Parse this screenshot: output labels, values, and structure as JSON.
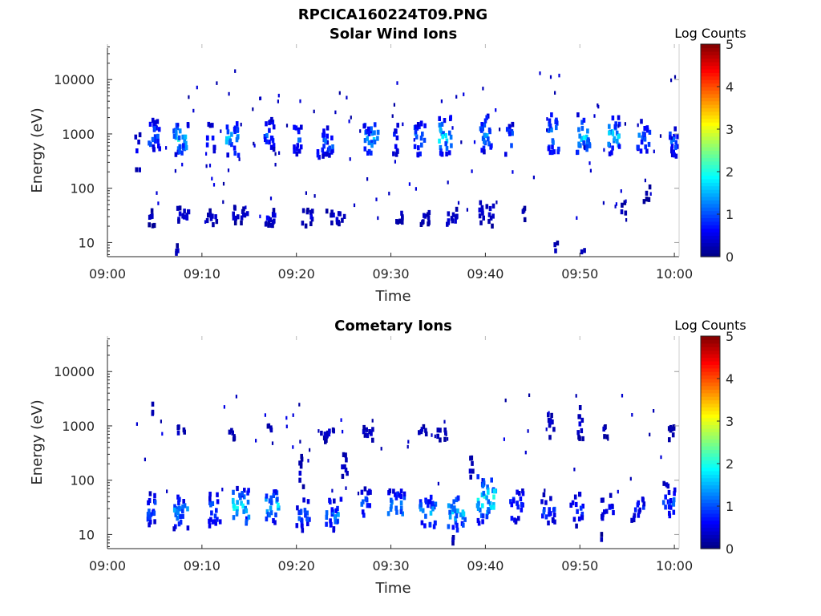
{
  "figure": {
    "filename": "RPCICA160224T09.PNG"
  },
  "chart_data": [
    {
      "type": "heatmap",
      "title": "Solar Wind Ions",
      "xlabel": "Time",
      "ylabel": "Energy (eV)",
      "x_ticks": [
        "09:00",
        "09:10",
        "09:20",
        "09:30",
        "09:40",
        "09:50",
        "10:00"
      ],
      "xlim_minutes": [
        0,
        60.5
      ],
      "y_scale": "log",
      "y_ticks": [
        10,
        100,
        1000,
        10000
      ],
      "y_tick_labels": [
        "10",
        "100",
        "1000",
        "10000"
      ],
      "ylim": [
        5.5,
        45000
      ],
      "colorbar": {
        "label": "Log Counts",
        "ticks": [
          "0",
          "1",
          "2",
          "3",
          "4",
          "5"
        ],
        "range": [
          0,
          5
        ],
        "colormap": "jet"
      },
      "bursts": [
        {
          "t": 3.0,
          "logE": 2.7,
          "w": 0.6,
          "h": 0.35,
          "level": 0.7,
          "n": 6
        },
        {
          "t": 4.8,
          "logE": 3.0,
          "w": 1.2,
          "h": 0.3,
          "level": 1.3,
          "n": 22
        },
        {
          "t": 7.6,
          "logE": 2.95,
          "w": 1.6,
          "h": 0.3,
          "level": 1.8,
          "n": 30
        },
        {
          "t": 10.8,
          "logE": 2.95,
          "w": 0.8,
          "h": 0.3,
          "level": 1.0,
          "n": 10
        },
        {
          "t": 13.1,
          "logE": 2.95,
          "w": 1.3,
          "h": 0.3,
          "level": 1.7,
          "n": 24
        },
        {
          "t": 17.0,
          "logE": 3.05,
          "w": 1.0,
          "h": 0.3,
          "level": 1.2,
          "n": 18
        },
        {
          "t": 20.0,
          "logE": 2.95,
          "w": 0.8,
          "h": 0.3,
          "level": 1.1,
          "n": 14
        },
        {
          "t": 22.8,
          "logE": 2.9,
          "w": 1.8,
          "h": 0.3,
          "level": 1.3,
          "n": 26
        },
        {
          "t": 27.7,
          "logE": 2.95,
          "w": 1.6,
          "h": 0.3,
          "level": 1.6,
          "n": 26
        },
        {
          "t": 30.3,
          "logE": 2.95,
          "w": 0.6,
          "h": 0.3,
          "level": 1.0,
          "n": 10
        },
        {
          "t": 32.9,
          "logE": 2.95,
          "w": 1.3,
          "h": 0.3,
          "level": 1.6,
          "n": 20
        },
        {
          "t": 35.6,
          "logE": 3.0,
          "w": 1.3,
          "h": 0.35,
          "level": 1.9,
          "n": 26
        },
        {
          "t": 39.9,
          "logE": 3.05,
          "w": 1.2,
          "h": 0.35,
          "level": 1.5,
          "n": 24
        },
        {
          "t": 42.4,
          "logE": 2.95,
          "w": 0.8,
          "h": 0.3,
          "level": 1.2,
          "n": 12
        },
        {
          "t": 47.1,
          "logE": 3.05,
          "w": 1.1,
          "h": 0.35,
          "level": 1.6,
          "n": 22
        },
        {
          "t": 50.3,
          "logE": 3.05,
          "w": 1.5,
          "h": 0.35,
          "level": 1.9,
          "n": 26
        },
        {
          "t": 53.5,
          "logE": 3.0,
          "w": 1.3,
          "h": 0.35,
          "level": 1.7,
          "n": 24
        },
        {
          "t": 56.6,
          "logE": 3.0,
          "w": 1.3,
          "h": 0.3,
          "level": 1.3,
          "n": 20
        },
        {
          "t": 59.8,
          "logE": 2.9,
          "w": 0.9,
          "h": 0.3,
          "level": 1.2,
          "n": 18
        },
        {
          "t": 4.5,
          "logE": 1.5,
          "w": 0.7,
          "h": 0.15,
          "level": 0.4,
          "n": 8
        },
        {
          "t": 7.7,
          "logE": 1.55,
          "w": 1.6,
          "h": 0.15,
          "level": 0.5,
          "n": 14
        },
        {
          "t": 11.0,
          "logE": 1.5,
          "w": 1.2,
          "h": 0.15,
          "level": 0.4,
          "n": 10
        },
        {
          "t": 14.0,
          "logE": 1.55,
          "w": 1.8,
          "h": 0.15,
          "level": 0.5,
          "n": 14
        },
        {
          "t": 17.0,
          "logE": 1.5,
          "w": 1.2,
          "h": 0.15,
          "level": 0.6,
          "n": 14
        },
        {
          "t": 21.0,
          "logE": 1.5,
          "w": 1.3,
          "h": 0.15,
          "level": 0.5,
          "n": 10
        },
        {
          "t": 24.0,
          "logE": 1.5,
          "w": 2.0,
          "h": 0.15,
          "level": 0.5,
          "n": 14
        },
        {
          "t": 30.8,
          "logE": 1.55,
          "w": 1.0,
          "h": 0.15,
          "level": 0.4,
          "n": 8
        },
        {
          "t": 33.5,
          "logE": 1.5,
          "w": 1.2,
          "h": 0.15,
          "level": 0.4,
          "n": 10
        },
        {
          "t": 36.5,
          "logE": 1.5,
          "w": 1.4,
          "h": 0.2,
          "level": 0.5,
          "n": 12
        },
        {
          "t": 40.0,
          "logE": 1.6,
          "w": 1.6,
          "h": 0.25,
          "level": 0.5,
          "n": 16
        },
        {
          "t": 44.0,
          "logE": 1.6,
          "w": 0.4,
          "h": 0.15,
          "level": 0.3,
          "n": 4
        },
        {
          "t": 47.3,
          "logE": 0.9,
          "w": 0.4,
          "h": 0.2,
          "level": 0.4,
          "n": 5
        },
        {
          "t": 50.2,
          "logE": 0.85,
          "w": 0.4,
          "h": 0.15,
          "level": 0.3,
          "n": 3
        },
        {
          "t": 57.0,
          "logE": 1.95,
          "w": 0.8,
          "h": 0.15,
          "level": 0.3,
          "n": 5
        },
        {
          "t": 54.5,
          "logE": 1.6,
          "w": 0.6,
          "h": 0.2,
          "level": 0.3,
          "n": 4
        },
        {
          "t": 7.3,
          "logE": 0.9,
          "w": 0.4,
          "h": 0.1,
          "level": 0.4,
          "n": 4
        },
        {
          "t": 12.8,
          "logE": 0.85,
          "w": 0.3,
          "h": 0.1,
          "level": 0.4,
          "n": 3
        }
      ],
      "scatter_density": 110,
      "scatter_logE_range": [
        1.4,
        4.2
      ],
      "seed": 7
    },
    {
      "type": "heatmap",
      "title": "Cometary Ions",
      "xlabel": "Time",
      "ylabel": "Energy (eV)",
      "x_ticks": [
        "09:00",
        "09:10",
        "09:20",
        "09:30",
        "09:40",
        "09:50",
        "10:00"
      ],
      "xlim_minutes": [
        0,
        60.5
      ],
      "y_scale": "log",
      "y_ticks": [
        10,
        100,
        1000,
        10000
      ],
      "y_tick_labels": [
        "10",
        "100",
        "1000",
        "10000"
      ],
      "ylim": [
        5.5,
        45000
      ],
      "colorbar": {
        "label": "Log Counts",
        "ticks": [
          "0",
          "1",
          "2",
          "3",
          "4",
          "5"
        ],
        "range": [
          0,
          5
        ],
        "colormap": "jet"
      },
      "bursts": [
        {
          "t": 4.6,
          "logE": 1.5,
          "w": 1.0,
          "h": 0.3,
          "level": 1.2,
          "n": 22
        },
        {
          "t": 7.6,
          "logE": 1.45,
          "w": 1.6,
          "h": 0.3,
          "level": 1.5,
          "n": 28
        },
        {
          "t": 11.2,
          "logE": 1.5,
          "w": 1.2,
          "h": 0.3,
          "level": 1.2,
          "n": 18
        },
        {
          "t": 14.0,
          "logE": 1.55,
          "w": 1.8,
          "h": 0.35,
          "level": 1.8,
          "n": 30
        },
        {
          "t": 17.3,
          "logE": 1.55,
          "w": 1.4,
          "h": 0.35,
          "level": 1.8,
          "n": 26
        },
        {
          "t": 20.6,
          "logE": 1.4,
          "w": 1.4,
          "h": 0.3,
          "level": 1.1,
          "n": 20
        },
        {
          "t": 23.8,
          "logE": 1.4,
          "w": 1.6,
          "h": 0.3,
          "level": 1.3,
          "n": 24
        },
        {
          "t": 27.2,
          "logE": 1.6,
          "w": 1.0,
          "h": 0.3,
          "level": 1.1,
          "n": 14
        },
        {
          "t": 30.4,
          "logE": 1.55,
          "w": 1.8,
          "h": 0.3,
          "level": 1.5,
          "n": 24
        },
        {
          "t": 33.8,
          "logE": 1.45,
          "w": 1.8,
          "h": 0.3,
          "level": 1.5,
          "n": 26
        },
        {
          "t": 36.8,
          "logE": 1.45,
          "w": 1.8,
          "h": 0.35,
          "level": 1.7,
          "n": 30
        },
        {
          "t": 40.0,
          "logE": 1.7,
          "w": 2.0,
          "h": 0.45,
          "level": 2.0,
          "n": 40
        },
        {
          "t": 43.2,
          "logE": 1.55,
          "w": 1.4,
          "h": 0.3,
          "level": 1.1,
          "n": 20
        },
        {
          "t": 46.5,
          "logE": 1.5,
          "w": 1.4,
          "h": 0.3,
          "level": 1.0,
          "n": 18
        },
        {
          "t": 49.5,
          "logE": 1.5,
          "w": 1.4,
          "h": 0.3,
          "level": 1.0,
          "n": 16
        },
        {
          "t": 52.8,
          "logE": 1.55,
          "w": 1.4,
          "h": 0.25,
          "level": 0.8,
          "n": 14
        },
        {
          "t": 56.0,
          "logE": 1.55,
          "w": 1.4,
          "h": 0.25,
          "level": 0.8,
          "n": 14
        },
        {
          "t": 59.3,
          "logE": 1.65,
          "w": 1.2,
          "h": 0.35,
          "level": 1.1,
          "n": 20
        },
        {
          "t": 4.7,
          "logE": 3.35,
          "w": 0.3,
          "h": 0.15,
          "level": 0.4,
          "n": 3
        },
        {
          "t": 7.7,
          "logE": 2.95,
          "w": 0.8,
          "h": 0.15,
          "level": 0.4,
          "n": 6
        },
        {
          "t": 13.0,
          "logE": 2.9,
          "w": 0.6,
          "h": 0.1,
          "level": 0.4,
          "n": 6
        },
        {
          "t": 17.0,
          "logE": 3.0,
          "w": 0.6,
          "h": 0.1,
          "level": 0.4,
          "n": 4
        },
        {
          "t": 23.0,
          "logE": 2.9,
          "w": 1.6,
          "h": 0.15,
          "level": 0.5,
          "n": 12
        },
        {
          "t": 27.5,
          "logE": 2.9,
          "w": 1.2,
          "h": 0.12,
          "level": 0.5,
          "n": 10
        },
        {
          "t": 33.2,
          "logE": 2.95,
          "w": 0.8,
          "h": 0.1,
          "level": 0.4,
          "n": 6
        },
        {
          "t": 35.2,
          "logE": 2.9,
          "w": 1.0,
          "h": 0.12,
          "level": 0.4,
          "n": 8
        },
        {
          "t": 46.8,
          "logE": 3.05,
          "w": 0.6,
          "h": 0.25,
          "level": 0.5,
          "n": 10
        },
        {
          "t": 49.9,
          "logE": 3.1,
          "w": 0.6,
          "h": 0.3,
          "level": 0.5,
          "n": 10
        },
        {
          "t": 52.5,
          "logE": 2.95,
          "w": 0.6,
          "h": 0.12,
          "level": 0.4,
          "n": 5
        },
        {
          "t": 59.6,
          "logE": 2.9,
          "w": 0.6,
          "h": 0.15,
          "level": 0.4,
          "n": 8
        },
        {
          "t": 36.5,
          "logE": 0.95,
          "w": 0.3,
          "h": 0.1,
          "level": 0.3,
          "n": 3
        },
        {
          "t": 52.0,
          "logE": 0.95,
          "w": 0.3,
          "h": 0.1,
          "level": 0.3,
          "n": 2
        },
        {
          "t": 20.5,
          "logE": 2.2,
          "w": 0.6,
          "h": 0.3,
          "level": 0.4,
          "n": 8
        },
        {
          "t": 25.0,
          "logE": 2.3,
          "w": 0.6,
          "h": 0.3,
          "level": 0.4,
          "n": 8
        },
        {
          "t": 38.3,
          "logE": 2.2,
          "w": 0.5,
          "h": 0.3,
          "level": 0.4,
          "n": 6
        }
      ],
      "scatter_density": 55,
      "scatter_logE_range": [
        1.7,
        3.6
      ],
      "seed": 11
    }
  ]
}
